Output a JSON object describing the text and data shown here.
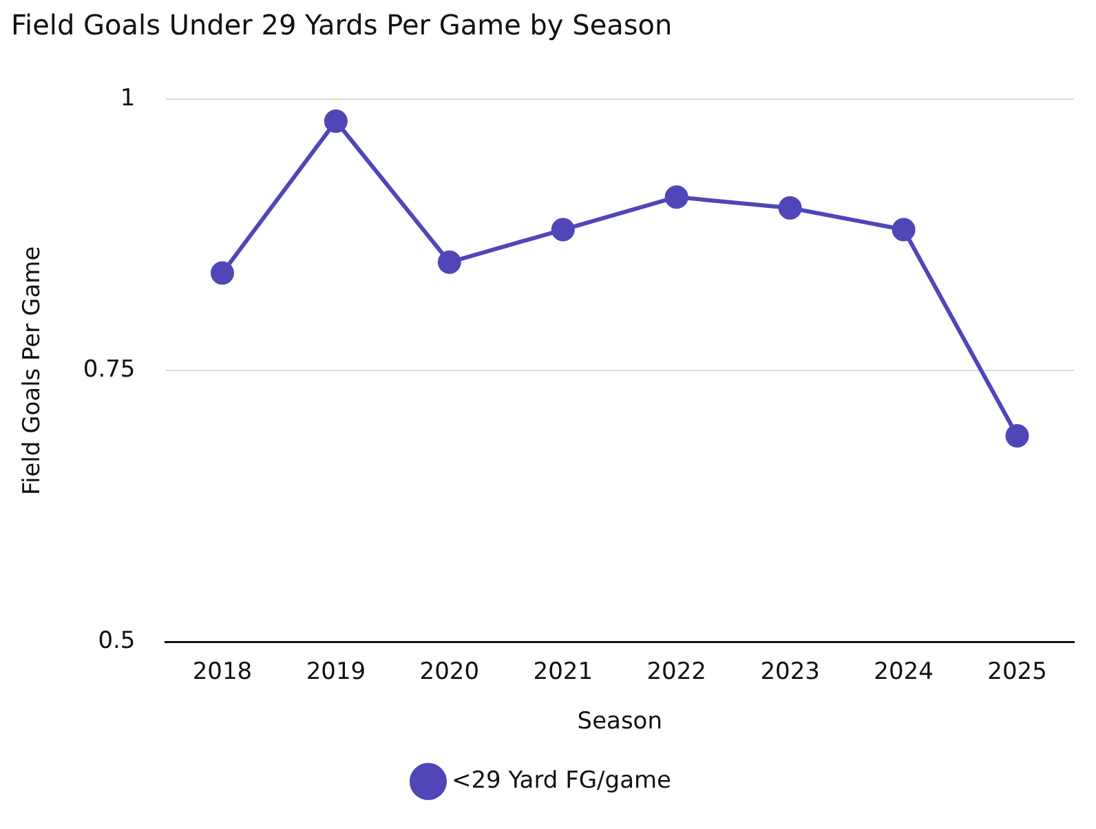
{
  "chart_data": {
    "type": "line",
    "title": "Field Goals Under 29 Yards Per Game by Season",
    "xlabel": "Season",
    "ylabel": "Field Goals Per Game",
    "categories": [
      "2018",
      "2019",
      "2020",
      "2021",
      "2022",
      "2023",
      "2024",
      "2025"
    ],
    "series": [
      {
        "name": "<29 Yard FG/game",
        "color": "#5046b8",
        "values": [
          0.84,
          0.98,
          0.85,
          0.88,
          0.91,
          0.9,
          0.88,
          0.69
        ]
      }
    ],
    "ylim": [
      0.5,
      1
    ],
    "yticks": [
      0.5,
      0.75,
      1
    ],
    "grid": "y",
    "legend": "bottom",
    "marker": "circle",
    "line_style": "solid"
  }
}
